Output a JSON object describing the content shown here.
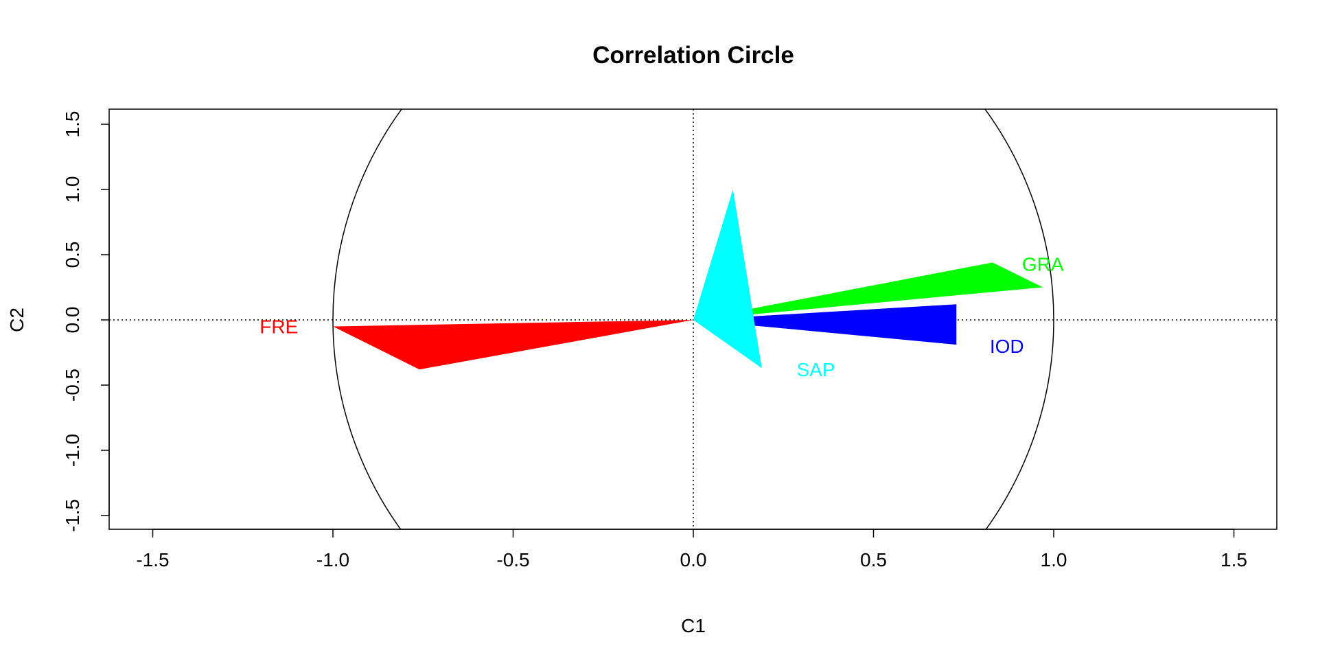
{
  "chart_data": {
    "type": "scatter",
    "title": "Correlation Circle",
    "xlabel": "C1",
    "ylabel": "C2",
    "xlim": [
      -1.5,
      1.5
    ],
    "ylim": [
      -1.5,
      1.5
    ],
    "xticks": [
      "-1.5",
      "-1.0",
      "-0.5",
      "0.0",
      "0.5",
      "1.0",
      "1.5"
    ],
    "yticks": [
      "-1.5",
      "-1.0",
      "-0.5",
      "0.0",
      "0.5",
      "1.0",
      "1.5"
    ],
    "unit_circle": true,
    "zero_lines": true,
    "variables": [
      {
        "label": "FRE",
        "color": "#ff0000",
        "tip": [
          -1.0,
          -0.05
        ],
        "wing": [
          -0.76,
          -0.38
        ],
        "label_pos": [
          -1.15,
          -0.05
        ]
      },
      {
        "label": "GRA",
        "color": "#00ff00",
        "tip": [
          0.97,
          0.25
        ],
        "wing": [
          0.83,
          0.44
        ],
        "label_pos": [
          0.97,
          0.43
        ]
      },
      {
        "label": "IOD",
        "color": "#0000ff",
        "tip": [
          0.73,
          0.12
        ],
        "wing": [
          0.73,
          -0.19
        ],
        "label_pos": [
          0.87,
          -0.2
        ]
      },
      {
        "label": "SAP",
        "color": "#00ffff",
        "tip": [
          0.19,
          -0.37
        ],
        "wing": [
          0.11,
          1.0
        ],
        "label_pos": [
          0.34,
          -0.38
        ]
      }
    ]
  }
}
